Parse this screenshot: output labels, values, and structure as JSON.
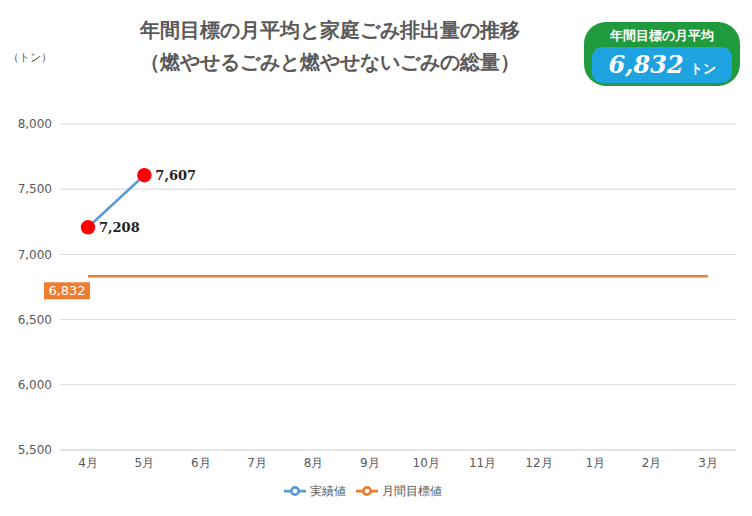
{
  "chart_data": {
    "type": "line",
    "title": "年間目標の月平均と家庭ごみ排出量の推移",
    "subtitle": "（燃やせるごみと燃やせないごみの総量）",
    "y_label": "（トン）",
    "categories": [
      "4月",
      "5月",
      "6月",
      "7月",
      "8月",
      "9月",
      "10月",
      "11月",
      "12月",
      "1月",
      "2月",
      "3月"
    ],
    "series": [
      {
        "name": "月間目標値",
        "color": "#ed7d31",
        "marker": "none",
        "data_labels": true,
        "values": [
          6832,
          6832,
          6832,
          6832,
          6832,
          6832,
          6832,
          6832,
          6832,
          6832,
          6832,
          6832
        ],
        "value_labels": [
          "6,832",
          null,
          null,
          null,
          null,
          null,
          null,
          null,
          null,
          null,
          null,
          null
        ]
      },
      {
        "name": "実績値",
        "color": "#5b9bd5",
        "marker": "circle",
        "data_labels": true,
        "values": [
          7208,
          7607,
          null,
          null,
          null,
          null,
          null,
          null,
          null,
          null,
          null,
          null
        ],
        "value_labels": [
          "7,208",
          "7,607",
          null,
          null,
          null,
          null,
          null,
          null,
          null,
          null,
          null,
          null
        ]
      }
    ],
    "ylim": [
      5500,
      8000
    ],
    "yticks": [
      {
        "value": 5500,
        "label": "5,500"
      },
      {
        "value": 6000,
        "label": "6,000"
      },
      {
        "value": 6500,
        "label": "6,500"
      },
      {
        "value": 7000,
        "label": "7,000"
      },
      {
        "value": 7500,
        "label": "7,500"
      },
      {
        "value": 8000,
        "label": "8,000"
      }
    ],
    "grid": true,
    "legend": "bottom",
    "badge": {
      "title": "年間目標の月平均",
      "value": 6832,
      "label": "6,832",
      "unit": "トン"
    }
  }
}
